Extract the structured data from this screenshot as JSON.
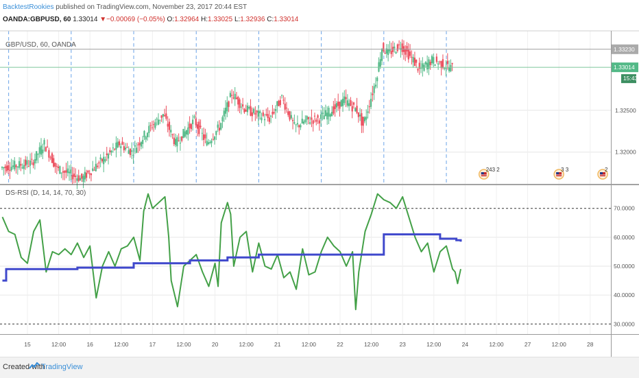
{
  "header": {
    "author": "BacktestRookies",
    "published": "published on TradingView.com, November 23, 2017 20:44 EST",
    "symbol": "OANDA:GBPUSD, 60",
    "last": "1.33014",
    "change": "−0.00069 (−0.05%)",
    "ohlc": [
      {
        "k": "O:",
        "v": "1.32964"
      },
      {
        "k": "H:",
        "v": "1.33025"
      },
      {
        "k": "L:",
        "v": "1.32936"
      },
      {
        "k": "C:",
        "v": "1.33014"
      }
    ]
  },
  "footer": {
    "created": "Created with",
    "brand": "TradingView"
  },
  "colors": {
    "up": "#53b987",
    "down": "#eb4d5c",
    "rsi": "#43a047",
    "signal": "#3f48cc",
    "grid": "#e6e6e6",
    "vline": "#6aa3e8"
  },
  "chart_data": [
    {
      "type": "candlestick",
      "title": "GBP/USD, 60, OANDA",
      "ylim": [
        1.3162,
        1.3345
      ],
      "yticks": [
        1.32,
        1.325
      ],
      "ytick_labels": [
        "1.32000",
        "1.32500"
      ],
      "price_labels": [
        {
          "value": 1.3323,
          "label": "1.33230",
          "bg": "#aaaaaa"
        },
        {
          "value": 1.33014,
          "label": "1.33014",
          "bg": "#53b987"
        }
      ],
      "countdown": "15:43",
      "session_marks": [
        1,
        11,
        21,
        31,
        41,
        51,
        61,
        71
      ],
      "anchors": [
        [
          0,
          1.3181
        ],
        [
          5,
          1.3187
        ],
        [
          7,
          1.321
        ],
        [
          9,
          1.318
        ],
        [
          13,
          1.3168
        ],
        [
          17,
          1.3195
        ],
        [
          19,
          1.321
        ],
        [
          21,
          1.32
        ],
        [
          24,
          1.323
        ],
        [
          26,
          1.3245
        ],
        [
          28,
          1.321
        ],
        [
          31,
          1.3238
        ],
        [
          33,
          1.321
        ],
        [
          35,
          1.323
        ],
        [
          37,
          1.327
        ],
        [
          39,
          1.3252
        ],
        [
          41,
          1.3245
        ],
        [
          43,
          1.324
        ],
        [
          45,
          1.3265
        ],
        [
          47,
          1.323
        ],
        [
          49,
          1.3238
        ],
        [
          51,
          1.324
        ],
        [
          53,
          1.325
        ],
        [
          55,
          1.3262
        ],
        [
          57,
          1.325
        ],
        [
          58,
          1.3232
        ],
        [
          60,
          1.3285
        ],
        [
          61,
          1.3325
        ],
        [
          62,
          1.3318
        ],
        [
          64,
          1.3328
        ],
        [
          66,
          1.331
        ],
        [
          67,
          1.3298
        ],
        [
          69,
          1.331
        ],
        [
          72,
          1.3301
        ]
      ],
      "events": [
        {
          "bar": 77,
          "label": "243 2"
        },
        {
          "bar": 89,
          "label": "3 3"
        },
        {
          "bar": 96,
          "label": "2"
        }
      ]
    },
    {
      "type": "line",
      "title": "DS-RSI (D, 14, 14, 70, 30)",
      "ylim": [
        26.5,
        78
      ],
      "yticks": [
        30,
        40,
        50,
        60,
        70
      ],
      "ytick_labels": [
        "30.0000",
        "40.0000",
        "50.0000",
        "60.0000",
        "70.0000"
      ],
      "bands": [
        70,
        30
      ],
      "series": [
        {
          "role": "rsi",
          "anchors": [
            [
              0,
              67
            ],
            [
              1,
              62
            ],
            [
              2,
              61
            ],
            [
              3,
              53
            ],
            [
              4,
              51
            ],
            [
              5,
              62
            ],
            [
              6,
              66
            ],
            [
              7,
              48
            ],
            [
              8,
              55
            ],
            [
              9,
              54
            ],
            [
              10,
              56
            ],
            [
              11,
              54
            ],
            [
              12,
              58
            ],
            [
              13,
              53
            ],
            [
              14,
              57
            ],
            [
              15,
              39
            ],
            [
              16,
              50
            ],
            [
              17,
              55
            ],
            [
              18,
              50
            ],
            [
              19,
              56
            ],
            [
              20,
              57
            ],
            [
              21,
              60
            ],
            [
              22,
              52
            ],
            [
              22.6,
              69
            ],
            [
              23.3,
              75
            ],
            [
              24,
              70
            ],
            [
              25,
              72
            ],
            [
              26,
              74
            ],
            [
              26.6,
              60
            ],
            [
              27,
              45
            ],
            [
              28,
              36
            ],
            [
              29,
              50
            ],
            [
              30,
              52
            ],
            [
              31,
              54
            ],
            [
              32,
              48
            ],
            [
              33,
              43
            ],
            [
              34,
              51
            ],
            [
              34.5,
              43
            ],
            [
              35,
              65
            ],
            [
              36,
              72
            ],
            [
              36.5,
              68
            ],
            [
              37,
              50
            ],
            [
              38,
              60
            ],
            [
              39,
              62
            ],
            [
              40,
              48
            ],
            [
              41,
              58
            ],
            [
              42,
              50
            ],
            [
              43,
              49
            ],
            [
              44,
              54
            ],
            [
              45,
              46
            ],
            [
              46,
              48
            ],
            [
              47,
              42
            ],
            [
              48,
              56
            ],
            [
              49,
              47
            ],
            [
              50,
              48
            ],
            [
              51,
              55
            ],
            [
              52,
              60
            ],
            [
              53,
              57
            ],
            [
              54,
              55
            ],
            [
              55,
              50
            ],
            [
              56,
              55
            ],
            [
              56.5,
              35
            ],
            [
              57,
              48
            ],
            [
              58,
              62
            ],
            [
              59,
              68
            ],
            [
              60,
              75
            ],
            [
              61,
              73
            ],
            [
              62,
              72
            ],
            [
              63,
              70
            ],
            [
              64,
              74
            ],
            [
              65,
              67
            ],
            [
              66,
              60
            ],
            [
              67,
              55
            ],
            [
              68,
              58
            ],
            [
              69,
              48
            ],
            [
              70,
              55
            ],
            [
              71,
              57
            ],
            [
              72,
              49
            ],
            [
              72.4,
              48
            ],
            [
              72.8,
              44
            ],
            [
              73.3,
              49
            ]
          ]
        },
        {
          "role": "signal",
          "steps": [
            [
              0,
              45
            ],
            [
              0.6,
              49
            ],
            [
              12,
              49.5
            ],
            [
              21,
              51
            ],
            [
              30,
              52
            ],
            [
              36,
              53
            ],
            [
              41,
              54
            ],
            [
              61,
              61
            ],
            [
              70,
              59.5
            ],
            [
              72.6,
              59
            ],
            [
              73.3,
              58.5
            ]
          ]
        }
      ],
      "x_labels": [
        {
          "bar": 4,
          "text": "15"
        },
        {
          "bar": 9,
          "text": "12:00"
        },
        {
          "bar": 14,
          "text": "16"
        },
        {
          "bar": 19,
          "text": "12:00"
        },
        {
          "bar": 24,
          "text": "17"
        },
        {
          "bar": 29,
          "text": "12:00"
        },
        {
          "bar": 34,
          "text": "20"
        },
        {
          "bar": 39,
          "text": "12:00"
        },
        {
          "bar": 44,
          "text": "21"
        },
        {
          "bar": 49,
          "text": "12:00"
        },
        {
          "bar": 54,
          "text": "22"
        },
        {
          "bar": 59,
          "text": "12:00"
        },
        {
          "bar": 64,
          "text": "23"
        },
        {
          "bar": 69,
          "text": "12:00"
        },
        {
          "bar": 74,
          "text": "24"
        },
        {
          "bar": 79,
          "text": "12:00"
        },
        {
          "bar": 84,
          "text": "27"
        },
        {
          "bar": 89,
          "text": "12:00"
        },
        {
          "bar": 94,
          "text": "28"
        }
      ]
    }
  ]
}
